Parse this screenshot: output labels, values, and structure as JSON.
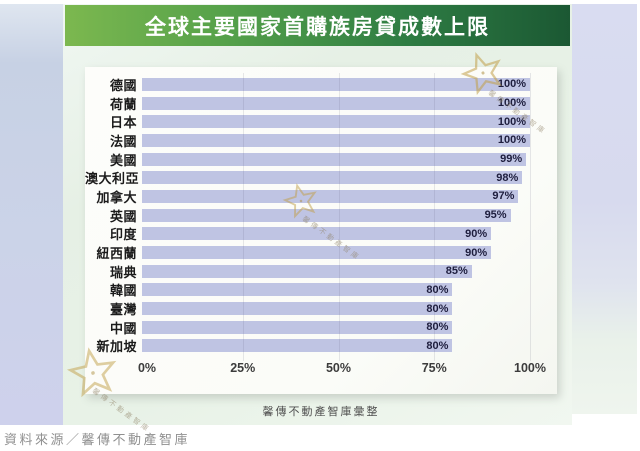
{
  "banner": {
    "title": "全球主要國家首購族房貸成數上限"
  },
  "chart_data": {
    "type": "bar",
    "orientation": "horizontal",
    "title": "全球主要國家首購族房貸成數上限",
    "categories": [
      "德國",
      "荷蘭",
      "日本",
      "法國",
      "美國",
      "澳大利亞",
      "加拿大",
      "英國",
      "印度",
      "紐西蘭",
      "瑞典",
      "韓國",
      "臺灣",
      "中國",
      "新加坡"
    ],
    "values": [
      100,
      100,
      100,
      100,
      99,
      98,
      97,
      95,
      90,
      90,
      85,
      80,
      80,
      80,
      80
    ],
    "value_labels": [
      "100%",
      "100%",
      "100%",
      "100%",
      "99%",
      "98%",
      "97%",
      "95%",
      "90%",
      "90%",
      "85%",
      "80%",
      "80%",
      "80%",
      "80%"
    ],
    "x_ticks": [
      "0%",
      "25%",
      "50%",
      "75%",
      "100%"
    ],
    "xlim": [
      0,
      100
    ],
    "grid": "vertical-only",
    "legend": "none",
    "bar_color": "#bfc4e3"
  },
  "caption": "馨傳不動產智庫彙整",
  "source": "資料來源／馨傳不動產智庫",
  "watermark": {
    "text": "馨傳不動產智庫"
  },
  "colors": {
    "banner_green_light": "#7cb84f",
    "banner_green_dark": "#1b5833",
    "bar_fill": "#bfc4e3",
    "value_text": "#1e1e3e",
    "mint_background": "#e8f2e7",
    "left_band": "#cbd3e8",
    "right_band": "#d7daee",
    "watermark_gold": "#c2a04a",
    "source_text": "#909090"
  }
}
